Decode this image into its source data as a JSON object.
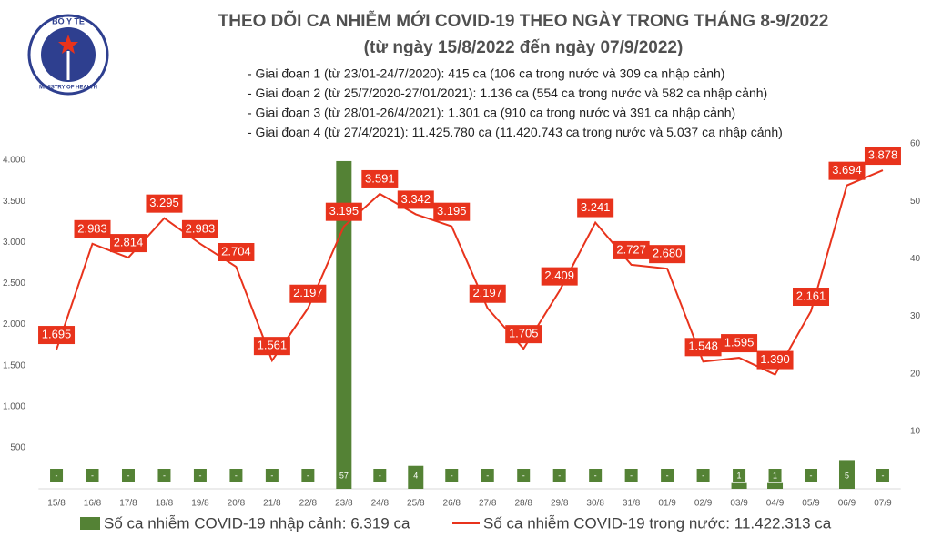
{
  "logo": {
    "top": "BỘ Y TẾ",
    "bottom": "MINISTRY OF HEALTH"
  },
  "chart_data": {
    "type": "bar_line",
    "title": "THEO DÕI CA NHIỄM MỚI COVID-19 THEO NGÀY TRONG THÁNG 8-9/2022",
    "subtitle": "(từ ngày 15/8/2022 đến ngày 07/9/2022)",
    "notes": [
      "- Giai đoạn 1 (từ 23/01-24/7/2020): 415 ca (106 ca trong nước và 309 ca nhập cảnh)",
      "- Giai đoạn 2 (từ 25/7/2020-27/01/2021): 1.136 ca (554 ca trong nước và 582 ca nhập cảnh)",
      "- Giai đoạn 3 (từ 28/01-26/4/2021): 1.301 ca (910 ca trong nước và 391 ca nhập cảnh)",
      "- Giai đoạn 4 (từ 27/4/2021): 11.425.780 ca (11.420.743 ca trong nước và 5.037 ca nhập cảnh)"
    ],
    "categories": [
      "15/8",
      "16/8",
      "17/8",
      "18/8",
      "19/8",
      "20/8",
      "21/8",
      "22/8",
      "23/8",
      "24/8",
      "25/8",
      "26/8",
      "27/8",
      "28/8",
      "29/8",
      "30/8",
      "31/8",
      "01/9",
      "02/9",
      "03/9",
      "04/9",
      "05/9",
      "06/9",
      "07/9"
    ],
    "series": [
      {
        "name": "Số ca nhiễm COVID-19 nhập cảnh: 6.319 ca",
        "color": "#548235",
        "type": "bar",
        "axis": "y2",
        "values": [
          0,
          0,
          0,
          0,
          0,
          0,
          0,
          0,
          57,
          0,
          4,
          0,
          0,
          0,
          0,
          0,
          0,
          0,
          0,
          1,
          1,
          0,
          5,
          0
        ],
        "value_labels": [
          "-",
          "-",
          "-",
          "-",
          "-",
          "-",
          "-",
          "-",
          "57",
          "-",
          "4",
          "-",
          "-",
          "-",
          "-",
          "-",
          "-",
          "-",
          "-",
          "1",
          "1",
          "-",
          "5",
          "-"
        ]
      },
      {
        "name": "Số ca nhiễm COVID-19 trong nước: 11.422.313 ca",
        "color": "#e8331c",
        "type": "line",
        "values": [
          1695,
          2983,
          2814,
          3295,
          2983,
          2704,
          1561,
          2197,
          3195,
          3591,
          3342,
          3195,
          2197,
          1705,
          2409,
          3241,
          2727,
          2680,
          1548,
          1595,
          1390,
          2161,
          3694,
          3878
        ],
        "value_labels": [
          "1.695",
          "2.983",
          "2.814",
          "3.295",
          "2.983",
          "2.704",
          "1.561",
          "2.197",
          "3.195",
          "3.591",
          "3.342",
          "3.195",
          "2.197",
          "1.705",
          "2.409",
          "3.241",
          "2.727",
          "2.680",
          "1.548",
          "1.595",
          "1.390",
          "2.161",
          "3.694",
          "3.878"
        ]
      }
    ],
    "ylim": [
      0,
      4200
    ],
    "yticks": [
      500,
      {
        "value": 1000,
        "label": "1.000"
      },
      {
        "value": 1500,
        "label": "1.500"
      },
      {
        "value": 2000,
        "label": "2.000"
      },
      {
        "value": 2500,
        "label": "2.500"
      },
      {
        "value": 3000,
        "label": "3.000"
      },
      {
        "value": 3500,
        "label": "3.500"
      },
      {
        "value": 4000,
        "label": "4.000"
      }
    ],
    "y2lim": [
      0,
      60
    ],
    "y2ticks": [
      10,
      20,
      30,
      40,
      50,
      60
    ],
    "legend": "bottom"
  }
}
